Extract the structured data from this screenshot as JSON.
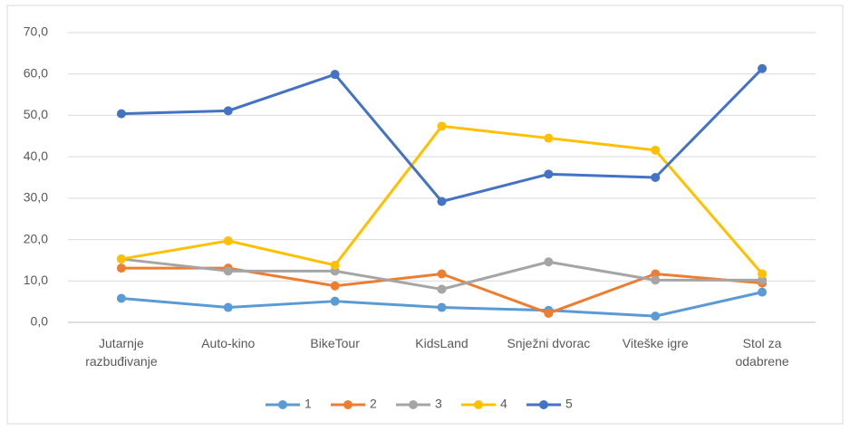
{
  "chart_data": {
    "type": "line",
    "categories": [
      "Jutarnje\nrazbuđivanje",
      "Auto-kino",
      "BikeTour",
      "KidsLand",
      "Snježni dvorac",
      "Viteške igre",
      "Stol za\nodabrene"
    ],
    "series": [
      {
        "name": "1",
        "color": "#5b9bd5",
        "values": [
          5.8,
          3.6,
          5.1,
          3.6,
          2.9,
          1.5,
          7.3
        ]
      },
      {
        "name": "2",
        "color": "#ed7d31",
        "values": [
          13.1,
          13.1,
          8.8,
          11.7,
          2.2,
          11.7,
          9.5
        ]
      },
      {
        "name": "3",
        "color": "#a5a5a5",
        "values": [
          15.3,
          12.4,
          12.4,
          8.0,
          14.6,
          10.2,
          10.2
        ]
      },
      {
        "name": "4",
        "color": "#ffc000",
        "values": [
          15.3,
          19.7,
          13.8,
          47.4,
          44.5,
          41.6,
          11.7
        ]
      },
      {
        "name": "5",
        "color": "#4472c4",
        "values": [
          50.4,
          51.1,
          59.9,
          29.2,
          35.8,
          35.0,
          61.3
        ]
      }
    ],
    "ylim": [
      0,
      70
    ],
    "yticks": [
      {
        "value": 0,
        "label": "0,0"
      },
      {
        "value": 10,
        "label": "10,0"
      },
      {
        "value": 20,
        "label": "20,0"
      },
      {
        "value": 30,
        "label": "30,0"
      },
      {
        "value": 40,
        "label": "40,0"
      },
      {
        "value": 50,
        "label": "50,0"
      },
      {
        "value": 60,
        "label": "60,0"
      },
      {
        "value": 70,
        "label": "70,0"
      }
    ],
    "grid": true,
    "legend": "bottom"
  }
}
